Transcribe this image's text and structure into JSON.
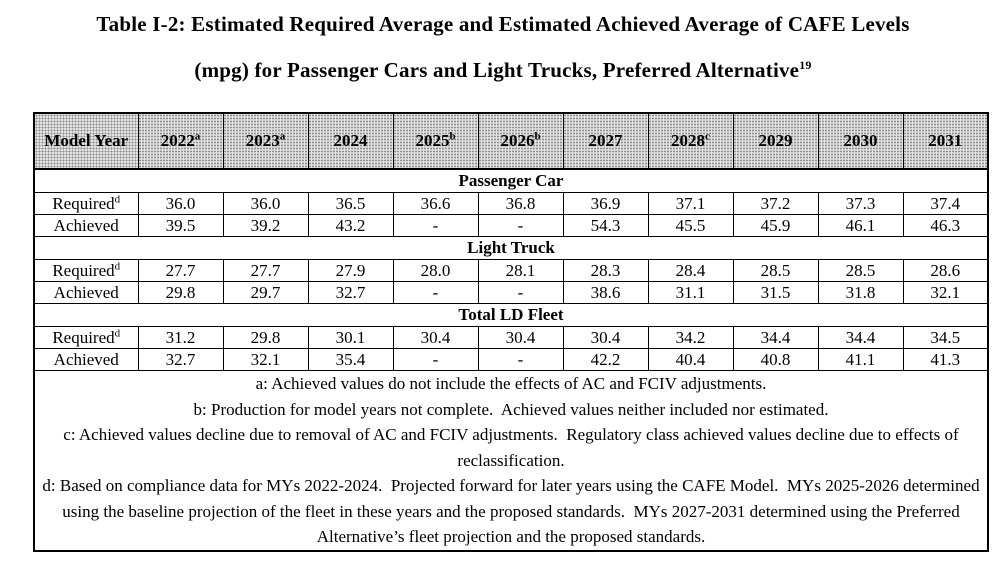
{
  "title": {
    "line1": "Table I-2: Estimated Required Average and Estimated Achieved Average of CAFE Levels",
    "line2": "(mpg) for Passenger Cars and Light Trucks, Preferred Alternative",
    "line2_sup": "19"
  },
  "table": {
    "header": {
      "model_year_label": "Model Year",
      "columns": [
        {
          "year": "2022",
          "sup": "a"
        },
        {
          "year": "2023",
          "sup": "a"
        },
        {
          "year": "2024",
          "sup": ""
        },
        {
          "year": "2025",
          "sup": "b"
        },
        {
          "year": "2026",
          "sup": "b"
        },
        {
          "year": "2027",
          "sup": ""
        },
        {
          "year": "2028",
          "sup": "c"
        },
        {
          "year": "2029",
          "sup": ""
        },
        {
          "year": "2030",
          "sup": ""
        },
        {
          "year": "2031",
          "sup": ""
        }
      ]
    },
    "sections": [
      {
        "name": "Passenger Car",
        "rows": [
          {
            "label": "Required",
            "sup": "d",
            "values": [
              "36.0",
              "36.0",
              "36.5",
              "36.6",
              "36.8",
              "36.9",
              "37.1",
              "37.2",
              "37.3",
              "37.4"
            ]
          },
          {
            "label": "Achieved",
            "sup": "",
            "values": [
              "39.5",
              "39.2",
              "43.2",
              "-",
              "-",
              "54.3",
              "45.5",
              "45.9",
              "46.1",
              "46.3"
            ]
          }
        ]
      },
      {
        "name": "Light Truck",
        "rows": [
          {
            "label": "Required",
            "sup": "d",
            "values": [
              "27.7",
              "27.7",
              "27.9",
              "28.0",
              "28.1",
              "28.3",
              "28.4",
              "28.5",
              "28.5",
              "28.6"
            ]
          },
          {
            "label": "Achieved",
            "sup": "",
            "values": [
              "29.8",
              "29.7",
              "32.7",
              "-",
              "-",
              "38.6",
              "31.1",
              "31.5",
              "31.8",
              "32.1"
            ]
          }
        ]
      },
      {
        "name": "Total LD Fleet",
        "rows": [
          {
            "label": "Required",
            "sup": "d",
            "values": [
              "31.2",
              "29.8",
              "30.1",
              "30.4",
              "30.4",
              "30.4",
              "34.2",
              "34.4",
              "34.4",
              "34.5"
            ]
          },
          {
            "label": "Achieved",
            "sup": "",
            "values": [
              "32.7",
              "32.1",
              "35.4",
              "-",
              "-",
              "42.2",
              "40.4",
              "40.8",
              "41.1",
              "41.3"
            ]
          }
        ]
      }
    ],
    "footnotes": [
      "a: Achieved values do not include the effects of AC and FCIV adjustments.",
      "b: Production for model years not complete.  Achieved values neither included nor estimated.",
      "c: Achieved values decline due to removal of AC and FCIV adjustments.  Regulatory class achieved values decline due to effects of reclassification.",
      "d: Based on compliance data for MYs 2022-2024.  Projected forward for later years using the CAFE Model.  MYs 2025-2026 determined using the baseline projection of the fleet in these years and the proposed standards.  MYs 2027-2031 determined using the Preferred Alternative’s fleet projection and the proposed standards."
    ]
  },
  "colors": {
    "page_bg": "#ffffff",
    "text": "#000000",
    "border": "#000000",
    "header_bg": "#e2e2e2"
  }
}
